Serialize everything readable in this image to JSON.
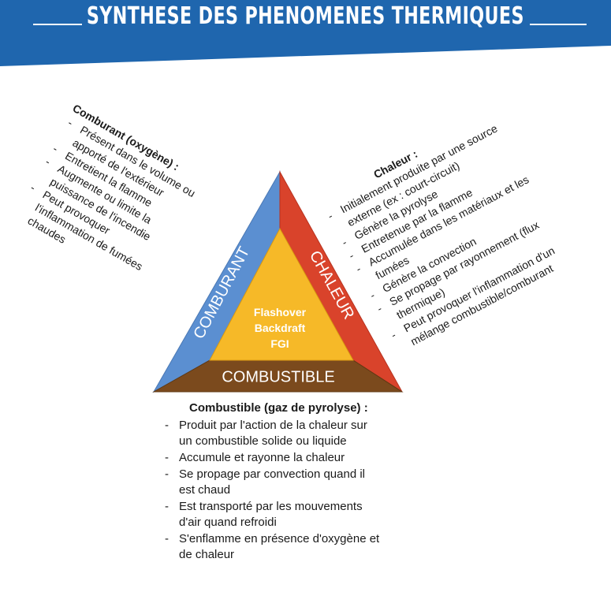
{
  "header": {
    "title": "SYNTHESE DES PHENOMENES THERMIQUES",
    "colors": {
      "band": "#1f66ae",
      "text": "#ffffff"
    }
  },
  "triangle": {
    "sides": {
      "comburant": {
        "label": "COMBURANT",
        "color": "#5b8fd1"
      },
      "chaleur": {
        "label": "CHALEUR",
        "color": "#d9432b"
      },
      "combustible": {
        "label": "COMBUSTIBLE",
        "color": "#7b4a1d"
      }
    },
    "center": {
      "color": "#f6b928",
      "lines": [
        "Flashover",
        "Backdraft",
        "FGI"
      ]
    }
  },
  "comburant_text": {
    "title": "Comburant (oxygène) :",
    "items": [
      [
        "Présent dans le volume ou",
        "apporté de l'extérieur"
      ],
      [
        "Entretient la flamme"
      ],
      [
        "Augmente ou limite la",
        "puissance de l'incendie"
      ],
      [
        "Peut provoquer",
        "l'inflammation de fumées",
        "chaudes"
      ]
    ]
  },
  "chaleur_text": {
    "title": "Chaleur :",
    "items": [
      [
        "Initialement produite par une source",
        "externe (ex : court-circuit)"
      ],
      [
        "Génère la pyrolyse"
      ],
      [
        "Entretenue par la flamme"
      ],
      [
        "Accumulée dans les matériaux et les",
        "fumées"
      ],
      [
        "Génère la convection"
      ],
      [
        "Se propage par rayonnement (flux",
        "thermique)"
      ],
      [
        "Peut provoquer l'inflammation d'un",
        "mélange combustible/comburant"
      ]
    ]
  },
  "combustible_text": {
    "title": "Combustible (gaz de pyrolyse) :",
    "items": [
      [
        "Produit par l'action de la chaleur sur",
        "un combustible solide ou liquide"
      ],
      [
        "Accumule et rayonne la chaleur"
      ],
      [
        "Se propage par convection quand il",
        "est chaud"
      ],
      [
        "Est transporté par les mouvements",
        "d'air quand refroidi"
      ],
      [
        "S'enflamme en présence d'oxygène et",
        "de chaleur"
      ]
    ]
  }
}
